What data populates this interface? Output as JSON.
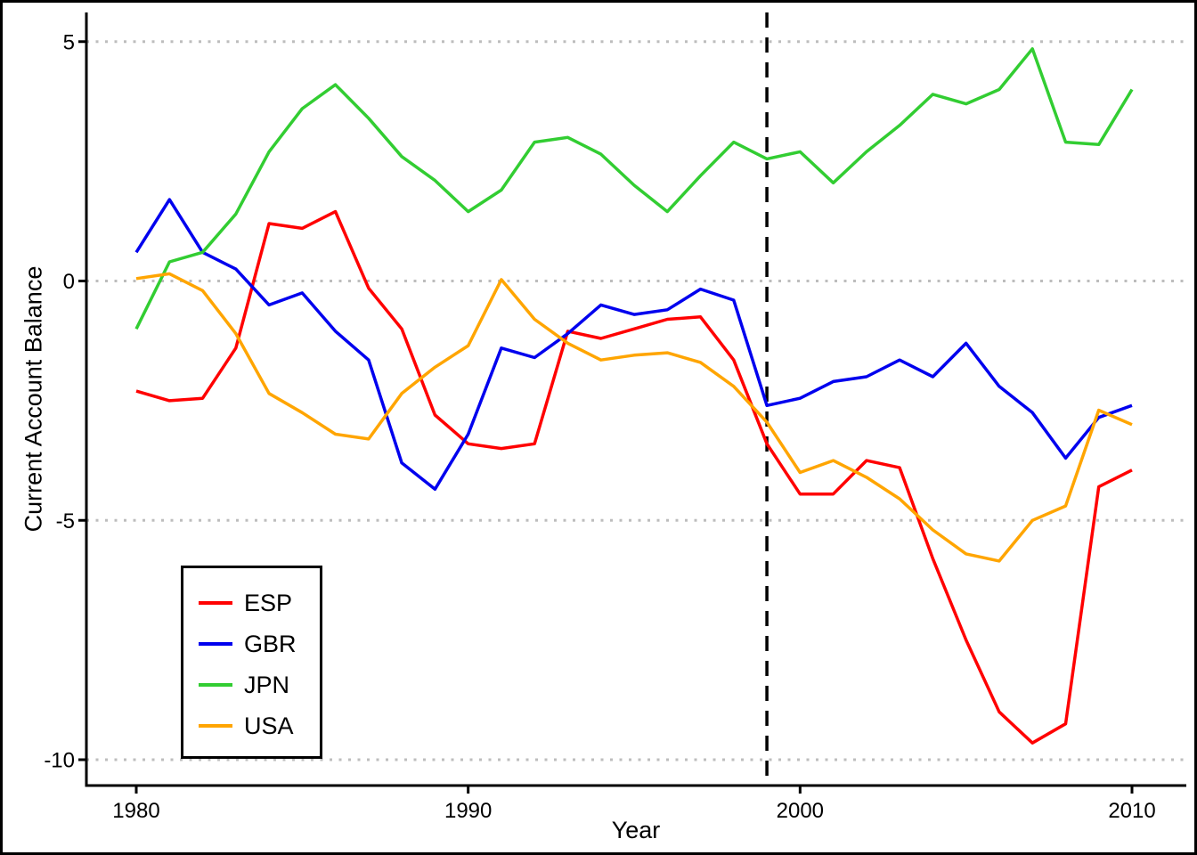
{
  "chart_data": {
    "type": "line",
    "title": "",
    "xlabel": "Year",
    "ylabel": "Current Account Balance",
    "x": [
      1980,
      1981,
      1982,
      1983,
      1984,
      1985,
      1986,
      1987,
      1988,
      1989,
      1990,
      1991,
      1992,
      1993,
      1994,
      1995,
      1996,
      1997,
      1998,
      1999,
      2000,
      2001,
      2002,
      2003,
      2004,
      2005,
      2006,
      2007,
      2008,
      2009,
      2010
    ],
    "series": [
      {
        "name": "ESP",
        "color": "#FF0000",
        "values": [
          -2.3,
          -2.5,
          -2.45,
          -1.4,
          1.2,
          1.1,
          1.45,
          -0.15,
          -1.0,
          -2.8,
          -3.4,
          -3.5,
          -3.4,
          -1.05,
          -1.2,
          -1.0,
          -0.8,
          -0.75,
          -1.65,
          -3.4,
          -4.45,
          -4.45,
          -3.75,
          -3.9,
          -5.8,
          -7.5,
          -9.0,
          -9.65,
          -9.25,
          -4.3,
          -3.95
        ]
      },
      {
        "name": "GBR",
        "color": "#0000EE",
        "values": [
          0.6,
          1.7,
          0.6,
          0.25,
          -0.5,
          -0.25,
          -1.05,
          -1.65,
          -3.8,
          -4.35,
          -3.2,
          -1.4,
          -1.6,
          -1.1,
          -0.5,
          -0.7,
          -0.6,
          -0.17,
          -0.4,
          -2.6,
          -2.45,
          -2.1,
          -2.0,
          -1.65,
          -2.0,
          -1.3,
          -2.2,
          -2.75,
          -3.7,
          -2.85,
          -2.6
        ]
      },
      {
        "name": "JPN",
        "color": "#32CD32",
        "values": [
          -1.0,
          0.4,
          0.6,
          1.4,
          2.7,
          3.6,
          4.1,
          3.4,
          2.6,
          2.1,
          1.45,
          1.9,
          2.9,
          3.0,
          2.65,
          2.0,
          1.45,
          2.2,
          2.9,
          2.55,
          2.7,
          2.05,
          2.7,
          3.25,
          3.9,
          3.7,
          4.0,
          4.85,
          2.9,
          2.85,
          4.0
        ]
      },
      {
        "name": "USA",
        "color": "#FFA500",
        "values": [
          0.05,
          0.15,
          -0.2,
          -1.1,
          -2.35,
          -2.75,
          -3.2,
          -3.3,
          -2.35,
          -1.8,
          -1.35,
          0.03,
          -0.8,
          -1.3,
          -1.65,
          -1.55,
          -1.5,
          -1.7,
          -2.2,
          -2.95,
          -4.0,
          -3.75,
          -4.1,
          -4.55,
          -5.2,
          -5.7,
          -5.85,
          -5.0,
          -4.7,
          -2.7,
          -3.0
        ]
      }
    ],
    "x_ticks": [
      1980,
      1990,
      2000,
      2010
    ],
    "y_ticks": [
      5,
      0,
      -5,
      -10
    ],
    "xlim": [
      1978.5,
      2011.6
    ],
    "ylim": [
      -10.55,
      5.6
    ],
    "grid": "horizontal-dotted",
    "grid_color": "#BDBDBD",
    "axis_color": "#000000",
    "legend_position": "bottom-left",
    "annotations": [
      {
        "type": "vline",
        "x": 1999,
        "style": "dashed",
        "color": "#000000"
      }
    ]
  }
}
